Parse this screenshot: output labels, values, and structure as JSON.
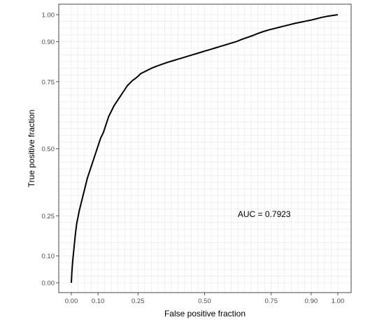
{
  "chart_data": {
    "type": "line",
    "title": "",
    "xlabel": "False positive fraction",
    "ylabel": "True positive fraction",
    "xlim": [
      0,
      1
    ],
    "ylim": [
      0,
      1
    ],
    "x_ticks": [
      0.0,
      0.1,
      0.25,
      0.5,
      0.75,
      0.9,
      1.0
    ],
    "x_tick_labels": [
      "0.00",
      "0.10",
      "0.25",
      "0.50",
      "0.75",
      "0.90",
      "1.00"
    ],
    "y_ticks": [
      0.0,
      0.1,
      0.25,
      0.5,
      0.75,
      0.9,
      1.0
    ],
    "y_tick_labels": [
      "0.00",
      "0.10",
      "0.25",
      "0.50",
      "0.75",
      "0.90",
      "1.00"
    ],
    "grid": true,
    "line_color": "#000000",
    "annotation": "AUC = 0.7923",
    "series": [
      {
        "x": [
          0.0,
          0.002,
          0.005,
          0.01,
          0.015,
          0.02,
          0.03,
          0.04,
          0.05,
          0.06,
          0.07,
          0.08,
          0.09,
          0.1,
          0.11,
          0.12,
          0.13,
          0.14,
          0.15,
          0.16,
          0.17,
          0.18,
          0.19,
          0.2,
          0.21,
          0.22,
          0.23,
          0.24,
          0.25,
          0.26,
          0.27,
          0.28,
          0.3,
          0.32,
          0.34,
          0.36,
          0.38,
          0.4,
          0.42,
          0.44,
          0.46,
          0.48,
          0.5,
          0.52,
          0.54,
          0.56,
          0.58,
          0.6,
          0.62,
          0.64,
          0.66,
          0.68,
          0.7,
          0.72,
          0.74,
          0.76,
          0.78,
          0.8,
          0.82,
          0.84,
          0.86,
          0.88,
          0.9,
          0.92,
          0.94,
          0.96,
          0.98,
          1.0
        ],
        "y": [
          0.0,
          0.04,
          0.08,
          0.13,
          0.18,
          0.22,
          0.27,
          0.31,
          0.35,
          0.39,
          0.42,
          0.45,
          0.48,
          0.51,
          0.54,
          0.56,
          0.59,
          0.62,
          0.64,
          0.66,
          0.675,
          0.69,
          0.705,
          0.72,
          0.735,
          0.745,
          0.755,
          0.762,
          0.77,
          0.78,
          0.785,
          0.79,
          0.8,
          0.808,
          0.815,
          0.822,
          0.828,
          0.834,
          0.84,
          0.846,
          0.852,
          0.858,
          0.864,
          0.87,
          0.876,
          0.882,
          0.888,
          0.894,
          0.9,
          0.908,
          0.915,
          0.922,
          0.93,
          0.937,
          0.943,
          0.948,
          0.953,
          0.958,
          0.963,
          0.968,
          0.972,
          0.976,
          0.98,
          0.985,
          0.99,
          0.994,
          0.997,
          1.0
        ]
      }
    ]
  }
}
